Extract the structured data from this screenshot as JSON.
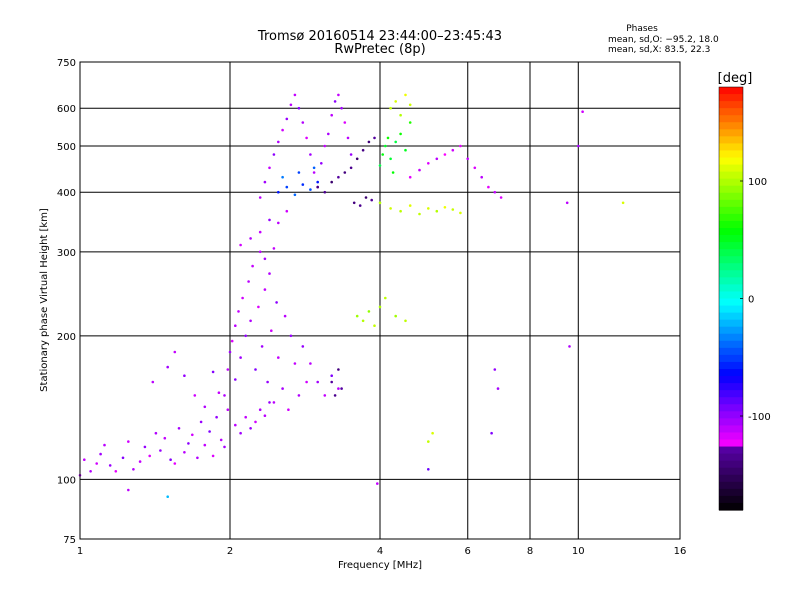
{
  "chart_data": {
    "type": "scatter",
    "title": "Tromsø 20160514 23:44:00–23:45:43",
    "subtitle": "RwPretec (8p)",
    "xlabel": "Frequency [MHz]",
    "ylabel": "Stationary phase Virtual Height [km]",
    "x_scale": "log",
    "y_scale": "log",
    "xlim": [
      1,
      16
    ],
    "ylim": [
      75,
      750
    ],
    "x_ticks": [
      1,
      2,
      4,
      6,
      8,
      10,
      16
    ],
    "y_ticks": [
      75,
      100,
      200,
      300,
      400,
      500,
      600,
      750
    ],
    "grid": true,
    "info": {
      "heading": "Phases",
      "line1": "mean, sd,O: −95.2, 18.0",
      "line2": "mean, sd,X:  83.5, 22.3"
    },
    "colorbar": {
      "label": "[deg]",
      "range": [
        -180,
        180
      ],
      "ticks": [
        100,
        0,
        -100
      ],
      "colormap": "rainbow"
    },
    "series": [
      {
        "points": [
          [
            1.0,
            102,
            -110
          ],
          [
            1.02,
            110,
            -112
          ],
          [
            1.05,
            104,
            -108
          ],
          [
            1.08,
            108,
            -115
          ],
          [
            1.1,
            113,
            -104
          ],
          [
            1.12,
            118,
            -110
          ],
          [
            1.15,
            107,
            -102
          ],
          [
            1.18,
            104,
            -120
          ],
          [
            1.22,
            111,
            -96
          ],
          [
            1.25,
            120,
            -115
          ],
          [
            1.28,
            105,
            -108
          ],
          [
            1.32,
            109,
            -112
          ],
          [
            1.35,
            117,
            -100
          ],
          [
            1.38,
            112,
            -118
          ],
          [
            1.42,
            125,
            -108
          ],
          [
            1.45,
            115,
            -102
          ],
          [
            1.48,
            122,
            -112
          ],
          [
            1.52,
            110,
            -96
          ],
          [
            1.55,
            108,
            -120
          ],
          [
            1.58,
            128,
            -105
          ],
          [
            1.62,
            114,
            -110
          ],
          [
            1.65,
            119,
            -98
          ],
          [
            1.68,
            124,
            -115
          ],
          [
            1.72,
            111,
            -108
          ],
          [
            1.75,
            132,
            -102
          ],
          [
            1.78,
            118,
            -112
          ],
          [
            1.82,
            126,
            -95
          ],
          [
            1.85,
            112,
            -118
          ],
          [
            1.88,
            135,
            -100
          ],
          [
            1.92,
            121,
            -110
          ],
          [
            1.95,
            117,
            -105
          ],
          [
            1.98,
            140,
            -112
          ],
          [
            1.4,
            160,
            -110
          ],
          [
            1.5,
            172,
            -104
          ],
          [
            1.55,
            185,
            -112
          ],
          [
            1.62,
            165,
            -100
          ],
          [
            1.7,
            150,
            -115
          ],
          [
            1.78,
            142,
            -108
          ],
          [
            1.85,
            168,
            -96
          ],
          [
            1.9,
            152,
            -112
          ],
          [
            1.95,
            150,
            -108
          ],
          [
            1.98,
            170,
            -112
          ],
          [
            2.0,
            185,
            -104
          ],
          [
            2.02,
            195,
            -118
          ],
          [
            2.05,
            210,
            -110
          ],
          [
            2.05,
            162,
            -98
          ],
          [
            2.08,
            225,
            -112
          ],
          [
            2.1,
            180,
            -104
          ],
          [
            2.12,
            240,
            -115
          ],
          [
            2.15,
            200,
            -100
          ],
          [
            2.18,
            260,
            -110
          ],
          [
            2.2,
            215,
            -108
          ],
          [
            2.22,
            280,
            -112
          ],
          [
            2.25,
            170,
            -96
          ],
          [
            2.28,
            230,
            -118
          ],
          [
            2.3,
            300,
            -110
          ],
          [
            2.32,
            190,
            -104
          ],
          [
            2.35,
            250,
            -112
          ],
          [
            2.38,
            160,
            -100
          ],
          [
            2.4,
            270,
            -108
          ],
          [
            2.42,
            205,
            -115
          ],
          [
            2.45,
            145,
            -110
          ],
          [
            2.48,
            235,
            -98
          ],
          [
            2.5,
            180,
            -112
          ],
          [
            2.55,
            155,
            -106
          ],
          [
            2.58,
            220,
            -110
          ],
          [
            2.62,
            140,
            -115
          ],
          [
            2.65,
            200,
            -102
          ],
          [
            2.7,
            175,
            -112
          ],
          [
            2.75,
            150,
            -108
          ],
          [
            2.8,
            190,
            -100
          ],
          [
            2.85,
            160,
            -115
          ],
          [
            2.9,
            175,
            -110
          ],
          [
            3.0,
            160,
            -104
          ],
          [
            3.1,
            150,
            -112
          ],
          [
            3.2,
            165,
            -95
          ],
          [
            3.3,
            155,
            -110
          ],
          [
            2.05,
            130,
            -110
          ],
          [
            2.1,
            125,
            -104
          ],
          [
            2.15,
            135,
            -112
          ],
          [
            2.2,
            128,
            -100
          ],
          [
            2.25,
            132,
            -115
          ],
          [
            2.3,
            140,
            -108
          ],
          [
            2.35,
            136,
            -110
          ],
          [
            2.4,
            145,
            -102
          ],
          [
            2.1,
            310,
            -115
          ],
          [
            2.2,
            320,
            -108
          ],
          [
            2.3,
            330,
            -112
          ],
          [
            2.4,
            350,
            -100
          ],
          [
            2.5,
            345,
            -110
          ],
          [
            2.6,
            365,
            -115
          ],
          [
            2.35,
            290,
            -106
          ],
          [
            2.45,
            305,
            -112
          ],
          [
            2.3,
            390,
            -110
          ],
          [
            2.35,
            420,
            -104
          ],
          [
            2.4,
            450,
            -112
          ],
          [
            2.45,
            480,
            -98
          ],
          [
            2.5,
            510,
            -108
          ],
          [
            2.55,
            540,
            -115
          ],
          [
            2.6,
            570,
            -102
          ],
          [
            2.65,
            610,
            -110
          ],
          [
            2.7,
            640,
            -112
          ],
          [
            2.75,
            600,
            -96
          ],
          [
            2.8,
            560,
            -108
          ],
          [
            2.85,
            520,
            -118
          ],
          [
            2.9,
            480,
            -104
          ],
          [
            2.95,
            440,
            -110
          ],
          [
            3.0,
            410,
            -115
          ],
          [
            3.05,
            460,
            -100
          ],
          [
            3.1,
            500,
            -112
          ],
          [
            3.15,
            530,
            -106
          ],
          [
            3.2,
            580,
            -110
          ],
          [
            3.25,
            620,
            -98
          ],
          [
            3.3,
            640,
            -112
          ],
          [
            3.35,
            600,
            -104
          ],
          [
            3.4,
            560,
            -118
          ],
          [
            3.45,
            520,
            -110
          ],
          [
            3.5,
            480,
            -102
          ],
          [
            2.5,
            400,
            -60
          ],
          [
            2.6,
            410,
            -50
          ],
          [
            2.7,
            395,
            -40
          ],
          [
            2.8,
            415,
            -55
          ],
          [
            2.9,
            405,
            -45
          ],
          [
            3.0,
            420,
            -60
          ],
          [
            2.55,
            430,
            -35
          ],
          [
            2.75,
            440,
            -50
          ],
          [
            2.95,
            450,
            -42
          ],
          [
            3.0,
            410,
            -140
          ],
          [
            3.1,
            400,
            -135
          ],
          [
            3.2,
            420,
            -145
          ],
          [
            3.3,
            430,
            -130
          ],
          [
            3.4,
            440,
            -140
          ],
          [
            3.5,
            450,
            -135
          ],
          [
            3.6,
            470,
            -145
          ],
          [
            3.7,
            490,
            -138
          ],
          [
            3.8,
            510,
            -142
          ],
          [
            3.9,
            520,
            -130
          ],
          [
            3.55,
            380,
            -140
          ],
          [
            3.65,
            375,
            -135
          ],
          [
            3.75,
            390,
            -145
          ],
          [
            3.85,
            385,
            -132
          ],
          [
            3.2,
            160,
            -130
          ],
          [
            3.25,
            150,
            -135
          ],
          [
            3.3,
            170,
            -140
          ],
          [
            3.35,
            155,
            -128
          ],
          [
            4.0,
            455,
            40
          ],
          [
            4.05,
            480,
            55
          ],
          [
            4.1,
            500,
            48
          ],
          [
            4.15,
            520,
            62
          ],
          [
            4.2,
            470,
            45
          ],
          [
            4.25,
            440,
            58
          ],
          [
            4.3,
            510,
            42
          ],
          [
            4.4,
            530,
            60
          ],
          [
            4.5,
            490,
            50
          ],
          [
            4.6,
            560,
            65
          ],
          [
            4.2,
            600,
            105
          ],
          [
            4.3,
            620,
            110
          ],
          [
            4.4,
            580,
            100
          ],
          [
            4.5,
            640,
            115
          ],
          [
            4.6,
            610,
            108
          ],
          [
            4.0,
            380,
            100
          ],
          [
            4.2,
            370,
            108
          ],
          [
            4.4,
            365,
            102
          ],
          [
            4.6,
            375,
            112
          ],
          [
            4.8,
            360,
            104
          ],
          [
            5.0,
            370,
            110
          ],
          [
            5.2,
            365,
            100
          ],
          [
            5.4,
            372,
            115
          ],
          [
            5.6,
            368,
            106
          ],
          [
            5.8,
            362,
            110
          ],
          [
            4.6,
            430,
            -120
          ],
          [
            4.8,
            445,
            -112
          ],
          [
            5.0,
            460,
            -118
          ],
          [
            5.2,
            470,
            -110
          ],
          [
            5.4,
            480,
            -125
          ],
          [
            5.6,
            490,
            -115
          ],
          [
            5.8,
            500,
            -120
          ],
          [
            6.0,
            470,
            -112
          ],
          [
            6.2,
            450,
            -118
          ],
          [
            6.4,
            430,
            -110
          ],
          [
            6.6,
            410,
            -120
          ],
          [
            6.8,
            400,
            -112
          ],
          [
            7.0,
            390,
            -118
          ],
          [
            3.6,
            220,
            95
          ],
          [
            3.7,
            215,
            100
          ],
          [
            3.8,
            225,
            92
          ],
          [
            3.9,
            210,
            105
          ],
          [
            4.0,
            230,
            98
          ],
          [
            4.1,
            240,
            102
          ],
          [
            4.3,
            220,
            96
          ],
          [
            4.5,
            215,
            104
          ],
          [
            5.0,
            120,
            105
          ],
          [
            5.1,
            125,
            110
          ],
          [
            5.0,
            105,
            -90
          ],
          [
            6.8,
            170,
            -100
          ],
          [
            6.9,
            155,
            -105
          ],
          [
            6.7,
            125,
            -95
          ],
          [
            9.5,
            380,
            -110
          ],
          [
            9.6,
            190,
            -108
          ],
          [
            10.0,
            500,
            -105
          ],
          [
            10.2,
            590,
            -115
          ],
          [
            12.3,
            380,
            110
          ],
          [
            1.25,
            95,
            -110
          ],
          [
            1.5,
            92,
            -20
          ],
          [
            3.95,
            98,
            -112
          ]
        ]
      }
    ]
  }
}
